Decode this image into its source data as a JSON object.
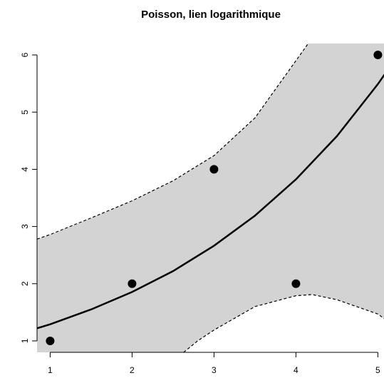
{
  "chart_data": {
    "type": "line",
    "title": "Poisson, lien logarithmique",
    "points": {
      "x": [
        1,
        2,
        3,
        4,
        5
      ],
      "values": [
        1,
        2,
        4,
        2,
        6
      ],
      "color": "#000000"
    },
    "fit": {
      "x": [
        0.84,
        1,
        1.5,
        2,
        2.5,
        3,
        3.5,
        4,
        4.5,
        5,
        5.16
      ],
      "values": [
        1.22,
        1.29,
        1.55,
        1.855,
        2.22,
        2.664,
        3.19,
        3.825,
        4.58,
        5.49,
        5.82
      ],
      "color": "#000000"
    },
    "upper": {
      "x": [
        0.84,
        1,
        1.5,
        2,
        2.5,
        3,
        3.5,
        4,
        4.15
      ],
      "values": [
        2.78,
        2.86,
        3.15,
        3.45,
        3.8,
        4.24,
        4.9,
        5.9,
        6.2
      ],
      "color": "#000000"
    },
    "lower": {
      "x": [
        2.63,
        2.8,
        3,
        3.5,
        4,
        4.2,
        4.5,
        5,
        5.16
      ],
      "values": [
        0.8,
        1.0,
        1.19,
        1.6,
        1.79,
        1.81,
        1.72,
        1.47,
        1.3
      ],
      "color": "#000000"
    },
    "band_color": "#d3d3d3",
    "xlim": [
      0.84,
      5.16
    ],
    "ylim": [
      0.8,
      6.2
    ],
    "xticks": [
      1,
      2,
      3,
      4,
      5
    ],
    "yticks": [
      1,
      2,
      3,
      4,
      5,
      6
    ]
  }
}
